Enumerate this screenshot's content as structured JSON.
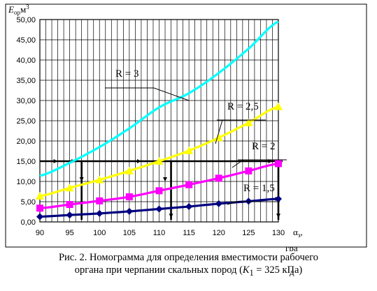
{
  "y_axis_label": {
    "base": "E",
    "sub": "ор",
    "unit": "м",
    "sup": "3"
  },
  "x_axis_label": {
    "base": "α",
    "sub": "з",
    "comma": ",",
    "unit": "гра",
    "unit2": "д"
  },
  "caption": {
    "line1": "Рис. 2. Номограмма для определения вместимости рабочего",
    "line2_pre": "органа при черпании скальных пород (",
    "k": "K",
    "k_sub": "1",
    "line2_post": " = 325 кПа)"
  },
  "colors": {
    "frame": "#000000",
    "grid": "#000000",
    "series": [
      "#00FFFF",
      "#FFFF00",
      "#FF00FF",
      "#000080"
    ],
    "guide": "#000000"
  },
  "chart_data": {
    "type": "line",
    "xlim": [
      90,
      130
    ],
    "ylim": [
      0,
      50
    ],
    "x_ticks": [
      "90",
      "95",
      "100",
      "105",
      "110",
      "115",
      "120",
      "125",
      "130"
    ],
    "y_ticks": [
      "0,00",
      "5,00",
      "10,00",
      "15,00",
      "20,00",
      "25,00",
      "30,00",
      "35,00",
      "40,00",
      "45,00",
      "50,00"
    ],
    "grid": true,
    "series": [
      {
        "name": "R = 3",
        "marker": "none",
        "x": [
          90,
          95,
          100,
          105,
          110,
          115,
          120,
          125,
          130
        ],
        "y": [
          11.4,
          14.6,
          18.5,
          23.1,
          28.3,
          31.8,
          36.8,
          42.8,
          49.5
        ]
      },
      {
        "name": "R = 2,5",
        "marker": "triangle",
        "x": [
          90,
          95,
          100,
          105,
          110,
          115,
          120,
          125,
          130
        ],
        "y": [
          6.4,
          8.4,
          10.4,
          12.6,
          15.0,
          17.6,
          20.8,
          24.5,
          28.5
        ]
      },
      {
        "name": "R = 2",
        "marker": "square",
        "x": [
          90,
          95,
          100,
          105,
          110,
          115,
          120,
          125,
          130
        ],
        "y": [
          3.4,
          4.3,
          5.2,
          6.2,
          7.7,
          9.2,
          10.8,
          12.6,
          14.4
        ]
      },
      {
        "name": "R = 1,5",
        "marker": "diamond",
        "x": [
          90,
          95,
          100,
          105,
          110,
          115,
          120,
          125,
          130
        ],
        "y": [
          1.3,
          1.7,
          2.1,
          2.6,
          3.2,
          3.8,
          4.5,
          5.1,
          5.7
        ]
      }
    ],
    "annotations": [
      "R = 3",
      "R = 2,5",
      "R = 2",
      "R = 1,5"
    ],
    "guides": {
      "hline_y": 15,
      "drops": [
        {
          "x": 95,
          "from_y": 15,
          "to_y": 0,
          "at_x": 97
        },
        {
          "x": 112,
          "from_y": 15,
          "to_y": 0
        },
        {
          "x": 130,
          "from_y": 15,
          "to_y": 0
        }
      ]
    }
  }
}
